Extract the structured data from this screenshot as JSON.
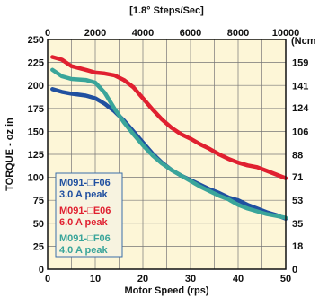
{
  "chart_data": {
    "type": "line",
    "xlabel": "Motor Speed (rps)",
    "top_xlabel": "[1.8° Steps/Sec]",
    "ylabel": "TORQUE - oz in",
    "right_ylabel": "(Ncm",
    "xlim": [
      0,
      50
    ],
    "ylim": [
      0,
      250
    ],
    "x_ticks": [
      "0",
      "10",
      "20",
      "30",
      "40",
      "50"
    ],
    "top_x_ticks": [
      "0",
      "2000",
      "4000",
      "6000",
      "8000",
      "10000"
    ],
    "y_ticks": [
      "0",
      "25",
      "50",
      "75",
      "100",
      "125",
      "150",
      "175",
      "200",
      "225",
      "250"
    ],
    "right_y_ticks": [
      "0",
      "18",
      "35",
      "53",
      "71",
      "88",
      "106",
      "124",
      "141",
      "159"
    ],
    "grid": true,
    "legend_position": "bottom-left",
    "series": [
      {
        "name": "M091-□F06",
        "sub": "3.0 A peak",
        "color": "#2050a0",
        "x": [
          1,
          3,
          5,
          8,
          10,
          12,
          14,
          16,
          18,
          20,
          22,
          24,
          26,
          28,
          30,
          32,
          34,
          36,
          38,
          40,
          42,
          44,
          46,
          48,
          50
        ],
        "y": [
          196,
          193,
          191,
          189,
          186,
          180,
          172,
          162,
          150,
          138,
          126,
          116,
          108,
          102,
          97,
          92,
          87,
          83,
          78,
          75,
          70,
          66,
          62,
          59,
          55
        ]
      },
      {
        "name": "M091-□E06",
        "sub": "6.0 A peak",
        "color": "#e02030",
        "x": [
          1,
          3,
          5,
          8,
          10,
          12,
          14,
          16,
          18,
          20,
          22,
          24,
          26,
          28,
          30,
          32,
          34,
          36,
          38,
          40,
          42,
          44,
          46,
          48,
          50
        ],
        "y": [
          231,
          228,
          221,
          217,
          214,
          213,
          211,
          206,
          198,
          186,
          174,
          163,
          154,
          147,
          142,
          136,
          131,
          125,
          120,
          116,
          113,
          111,
          107,
          103,
          99
        ]
      },
      {
        "name": "M091-□F06",
        "sub": "4.0 A peak",
        "color": "#3aa59a",
        "x": [
          1,
          3,
          5,
          8,
          10,
          12,
          14,
          16,
          18,
          20,
          22,
          24,
          26,
          28,
          30,
          32,
          34,
          36,
          38,
          40,
          42,
          44,
          46,
          48,
          50
        ],
        "y": [
          217,
          210,
          207,
          206,
          203,
          192,
          175,
          160,
          147,
          135,
          124,
          115,
          108,
          102,
          96,
          90,
          85,
          80,
          76,
          70,
          66,
          63,
          60,
          58,
          56
        ]
      }
    ]
  }
}
